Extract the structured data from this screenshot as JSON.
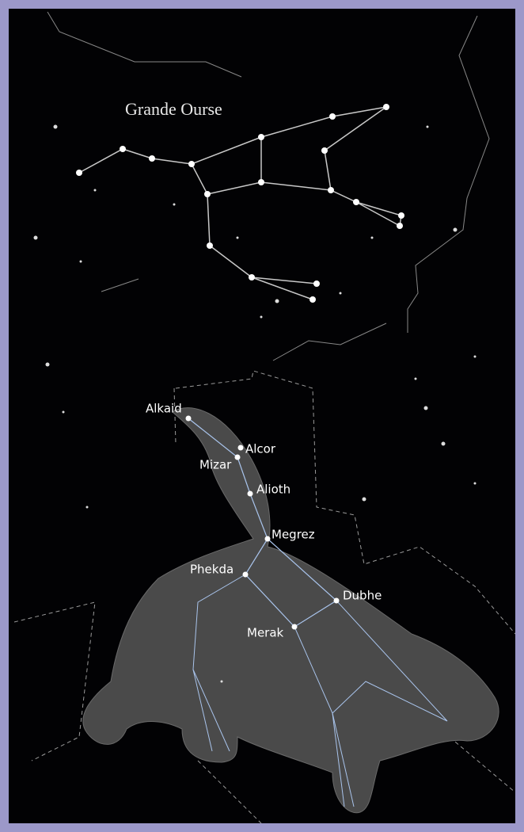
{
  "title": "Grande Ourse",
  "star_labels": [
    "Alkaid",
    "Alcor",
    "Mizar",
    "Alioth",
    "Megrez",
    "Phekda",
    "Dubhe",
    "Merak"
  ]
}
